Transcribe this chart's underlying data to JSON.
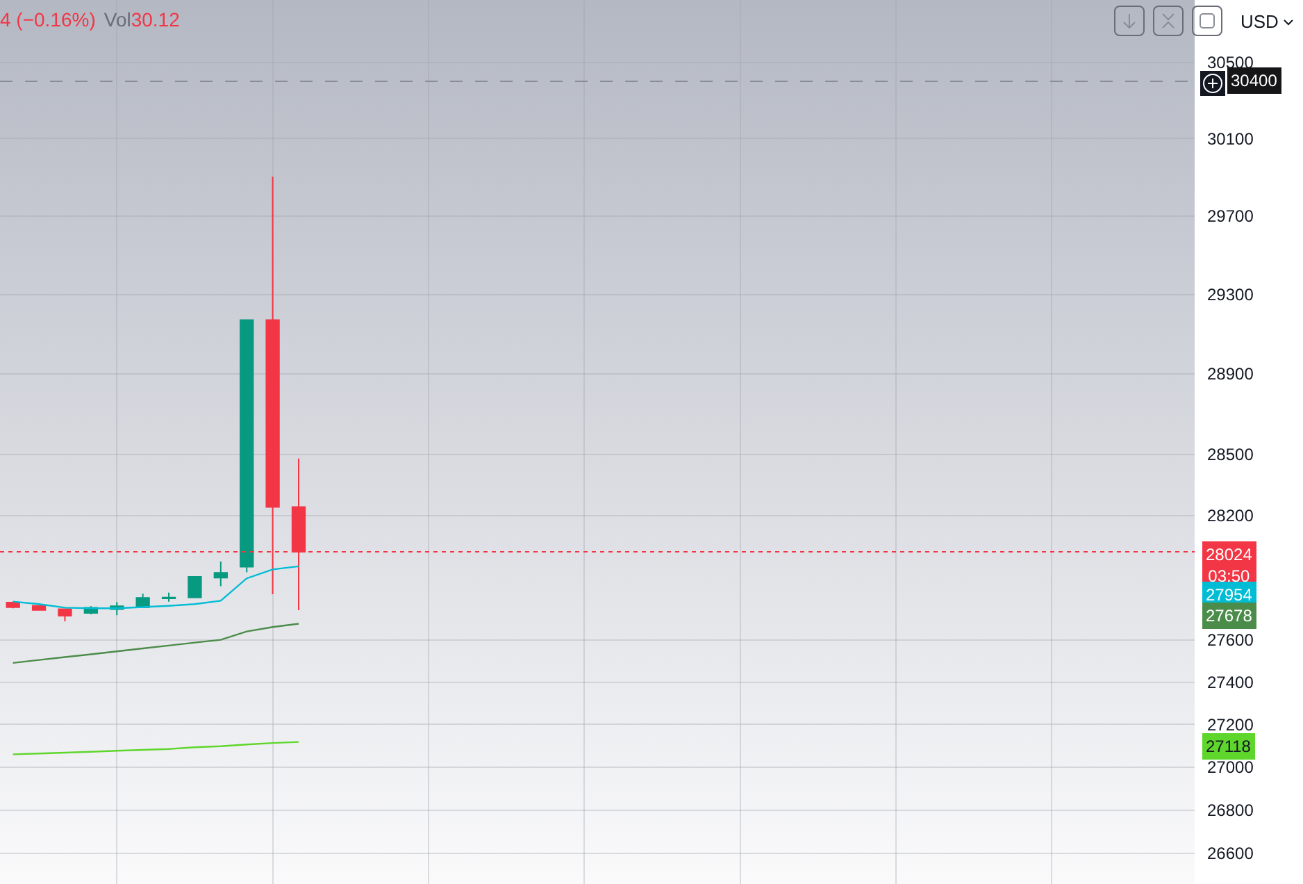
{
  "chart_data": {
    "type": "candlestick",
    "categories": [
      null,
      null,
      null,
      null,
      null,
      null,
      null,
      null,
      null,
      null,
      null,
      null,
      null,
      null,
      null,
      null,
      null,
      null,
      null,
      null,
      null,
      null,
      null,
      null,
      null,
      null,
      null,
      null,
      null,
      null,
      null,
      null,
      null,
      null,
      null,
      null,
      null,
      null,
      null,
      null,
      null,
      null,
      null,
      null,
      null,
      null
    ],
    "ohlc": [
      [
        27780,
        27785,
        27752,
        27757
      ],
      [
        27764,
        27768,
        27744,
        27744
      ],
      [
        27748,
        27748,
        27690,
        27716
      ],
      [
        27730,
        27762,
        27723,
        27755
      ],
      [
        27748,
        27782,
        27719,
        27762
      ],
      [
        27757,
        27822,
        27757,
        27802
      ],
      [
        27800,
        27827,
        27784,
        27804
      ],
      [
        27804,
        27903,
        27804,
        27903
      ],
      [
        27899,
        27977,
        27858,
        27923
      ],
      [
        27952,
        29170,
        27925,
        29170
      ],
      [
        29170,
        29902,
        27820,
        28242
      ],
      [
        28242,
        28480,
        27743,
        28024
      ],
      null,
      null,
      null,
      null,
      null,
      null,
      null,
      null,
      null,
      null,
      null,
      null,
      null,
      null,
      null,
      null,
      null,
      null,
      null,
      null,
      null,
      null,
      null,
      null,
      null,
      null,
      null,
      null,
      null,
      null,
      null,
      null,
      null,
      null
    ],
    "series": [
      {
        "type": "line",
        "color": "#00bcd4",
        "values": [
          27784,
          27772,
          27755,
          27752,
          27752,
          27758,
          27764,
          27772,
          27788,
          27896,
          27939,
          27954,
          null,
          null,
          null,
          null,
          null,
          null,
          null,
          null,
          null,
          null,
          null,
          null,
          null,
          null,
          null,
          null,
          null,
          null,
          null,
          null,
          null,
          null,
          null,
          null,
          null,
          null,
          null,
          null,
          null,
          null,
          null,
          null,
          null,
          null
        ]
      },
      {
        "type": "line",
        "color": "#4c8c4a",
        "values": [
          27491,
          27505,
          27519,
          27532,
          27546,
          27560,
          27574,
          27588,
          27601,
          27641,
          27662,
          27678,
          null,
          null,
          null,
          null,
          null,
          null,
          null,
          null,
          null,
          null,
          null,
          null,
          null,
          null,
          null,
          null,
          null,
          null,
          null,
          null,
          null,
          null,
          null,
          null,
          null,
          null,
          null,
          null,
          null,
          null,
          null,
          null,
          null,
          null
        ]
      },
      {
        "type": "line",
        "color": "#5ed62b",
        "values": [
          27060,
          27064,
          27068,
          27072,
          27077,
          27081,
          27085,
          27093,
          27098,
          27106,
          27113,
          27118,
          null,
          null,
          null,
          null,
          null,
          null,
          null,
          null,
          null,
          null,
          null,
          null,
          null,
          null,
          null,
          null,
          null,
          null,
          null,
          null,
          null,
          null,
          null,
          null,
          null,
          null,
          null,
          null,
          null,
          null,
          null,
          null,
          null,
          null
        ]
      }
    ],
    "ylim": [
      26460,
      30830
    ],
    "yticks": [
      26600,
      26800,
      27000,
      27200,
      27400,
      27600,
      28200,
      28500,
      28900,
      29300,
      29700,
      30100,
      30500
    ],
    "log": true,
    "grid": true,
    "tick_labels": "y",
    "ref_lines": [
      {
        "axis": "y",
        "value": 28024,
        "label": "28024",
        "color": "#f23645",
        "line_style": "dotted"
      },
      {
        "axis": "y",
        "value": 30400,
        "label": "30400",
        "color": "#8a8d96",
        "line_style": "dashed"
      }
    ],
    "annotations": [
      "4 (−0.16%)",
      "Vol",
      "30.12",
      "03:50",
      "USD",
      "27954",
      "27678",
      "27118"
    ]
  }
}
